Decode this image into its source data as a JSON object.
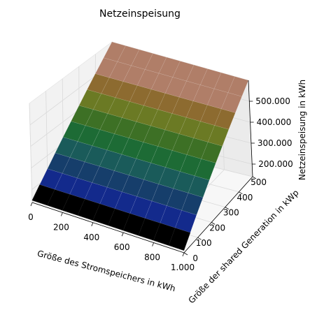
{
  "chart_data": {
    "type": "surface3d",
    "title": "Netzeinspeisung",
    "xlabel": "Größe des Stromspeichers in kWh",
    "ylabel": "Größe der shared Generation in kWp",
    "zlabel": "Netzeinspeisung in kWh",
    "x_ticks": [
      "0",
      "200",
      "400",
      "600",
      "800",
      "1.000"
    ],
    "y_ticks": [
      "0",
      "100",
      "200",
      "300",
      "400",
      "500"
    ],
    "z_ticks": [
      "200.000",
      "300.000",
      "400.000",
      "500.000"
    ],
    "xlim": [
      0,
      1000
    ],
    "ylim": [
      0,
      500
    ],
    "zlim": [
      140000,
      600000
    ],
    "surface": {
      "x": [
        0,
        100,
        200,
        300,
        400,
        500,
        600,
        700,
        800,
        900,
        1000
      ],
      "y": [
        0,
        50,
        100,
        150,
        200,
        250,
        300,
        350,
        400,
        450,
        500
      ],
      "z_at_y": [
        150000,
        195000,
        240000,
        285000,
        330000,
        375000,
        420000,
        465000,
        510000,
        555000,
        600000
      ],
      "band_colors": [
        "#000000",
        "#132a8c",
        "#163e6b",
        "#1a5b5a",
        "#1d6b35",
        "#3d7025",
        "#6b7a24",
        "#8d6b30",
        "#b07e68",
        "#b07e68"
      ]
    },
    "grid": true
  }
}
